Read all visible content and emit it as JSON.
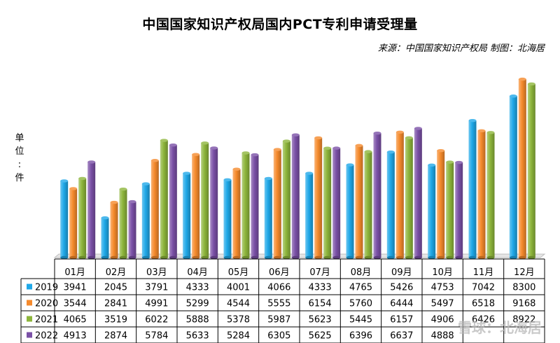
{
  "title": "中国国家知识产权局国内PCT专利申请受理量",
  "source": "来源：中国国家知识产权局 制图：北海居",
  "ylabel_chars": [
    "单",
    "位",
    ":",
    "件"
  ],
  "watermark": "雪球：北海居",
  "colors": {
    "2019": "#1fa8e8",
    "2020": "#f58a2c",
    "2021": "#8db53b",
    "2022": "#7a50a6"
  },
  "chart_data": {
    "type": "bar",
    "title": "中国国家知识产权局国内PCT专利申请受理量",
    "ylabel": "单位：件",
    "ylim": [
      0,
      10000
    ],
    "grid": false,
    "legend": "table-left",
    "categories": [
      "01月",
      "02月",
      "03月",
      "04月",
      "05月",
      "06月",
      "07月",
      "08月",
      "09月",
      "10月",
      "11月",
      "12月"
    ],
    "series": [
      {
        "name": "2019",
        "values": [
          3941,
          2045,
          3791,
          4333,
          4001,
          4066,
          4333,
          4765,
          5426,
          4753,
          7042,
          8300
        ]
      },
      {
        "name": "2020",
        "values": [
          3544,
          2841,
          4991,
          5299,
          4544,
          5555,
          6154,
          5760,
          6444,
          5497,
          6518,
          9168
        ]
      },
      {
        "name": "2021",
        "values": [
          4065,
          3519,
          6022,
          5888,
          5378,
          5987,
          5623,
          5445,
          6157,
          4906,
          6426,
          8922
        ]
      },
      {
        "name": "2022",
        "values": [
          4913,
          2874,
          5784,
          5633,
          5284,
          6305,
          5625,
          6396,
          6637,
          4888,
          null,
          null
        ]
      }
    ],
    "table_cells": [
      [
        "3941",
        "2045",
        "3791",
        "4333",
        "4001",
        "4066",
        "4333",
        "4765",
        "5426",
        "4753",
        "7042",
        "8300"
      ],
      [
        "3544",
        "2841",
        "4991",
        "5299",
        "4544",
        "5555",
        "6154",
        "5760",
        "6444",
        "5497",
        "6518",
        "9168"
      ],
      [
        "4065",
        "3519",
        "6022",
        "5888",
        "5378",
        "5987",
        "5623",
        "5445",
        "6157",
        "4906",
        "6426",
        "8922"
      ],
      [
        "4913",
        "2874",
        "5784",
        "5633",
        "5284",
        "6305",
        "5625",
        "6396",
        "6637",
        "4888",
        "",
        ""
      ]
    ]
  }
}
